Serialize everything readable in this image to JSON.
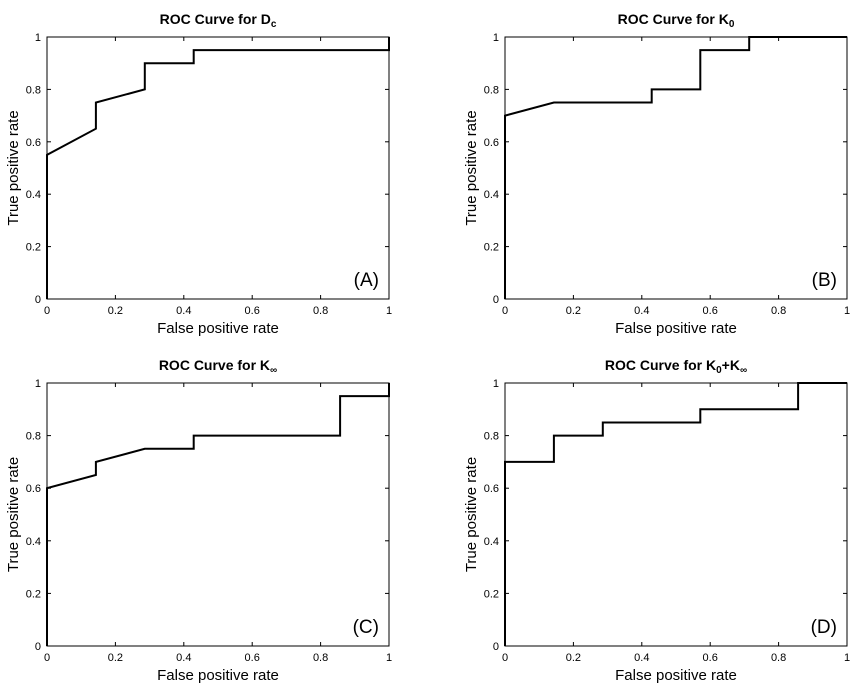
{
  "figure": {
    "background": "#ffffff",
    "line_color": "#000000"
  },
  "chart_data": [
    {
      "type": "line",
      "id": "A",
      "title": {
        "main": "ROC Curve for D",
        "sub": "c",
        "tail": ""
      },
      "panel_label": "(A)",
      "xlabel": "False positive rate",
      "ylabel": "True positive rate",
      "xlim": [
        0,
        1
      ],
      "ylim": [
        0,
        1
      ],
      "xticks": [
        0,
        0.2,
        0.4,
        0.6,
        0.8,
        1
      ],
      "yticks": [
        0,
        0.2,
        0.4,
        0.6,
        0.8,
        1
      ],
      "xtick_labels": [
        "0",
        "0.2",
        "0.4",
        "0.6",
        "0.8",
        "1"
      ],
      "ytick_labels": [
        "0",
        "0.2",
        "0.4",
        "0.6",
        "0.8",
        "1"
      ],
      "series": [
        {
          "name": "ROC",
          "x": [
            0,
            0,
            0.143,
            0.143,
            0.286,
            0.286,
            0.429,
            0.429,
            1,
            1
          ],
          "y": [
            0,
            0.55,
            0.65,
            0.75,
            0.8,
            0.9,
            0.9,
            0.95,
            0.95,
            1
          ]
        }
      ]
    },
    {
      "type": "line",
      "id": "B",
      "title": {
        "main": "ROC Curve for K",
        "sub": "0",
        "tail": ""
      },
      "panel_label": "(B)",
      "xlabel": "False positive rate",
      "ylabel": "True positive rate",
      "xlim": [
        0,
        1
      ],
      "ylim": [
        0,
        1
      ],
      "xticks": [
        0,
        0.2,
        0.4,
        0.6,
        0.8,
        1
      ],
      "yticks": [
        0,
        0.2,
        0.4,
        0.6,
        0.8,
        1
      ],
      "xtick_labels": [
        "0",
        "0.2",
        "0.4",
        "0.6",
        "0.8",
        "1"
      ],
      "ytick_labels": [
        "0",
        "0.2",
        "0.4",
        "0.6",
        "0.8",
        "1"
      ],
      "series": [
        {
          "name": "ROC",
          "x": [
            0,
            0,
            0.143,
            0.429,
            0.429,
            0.571,
            0.571,
            0.714,
            0.714,
            1
          ],
          "y": [
            0,
            0.7,
            0.75,
            0.75,
            0.8,
            0.8,
            0.95,
            0.95,
            1,
            1
          ]
        }
      ]
    },
    {
      "type": "line",
      "id": "C",
      "title": {
        "main": "ROC Curve for K",
        "sub": "∞",
        "tail": ""
      },
      "panel_label": "(C)",
      "xlabel": "False positive rate",
      "ylabel": "True positive rate",
      "xlim": [
        0,
        1
      ],
      "ylim": [
        0,
        1
      ],
      "xticks": [
        0,
        0.2,
        0.4,
        0.6,
        0.8,
        1
      ],
      "yticks": [
        0,
        0.2,
        0.4,
        0.6,
        0.8,
        1
      ],
      "xtick_labels": [
        "0",
        "0.2",
        "0.4",
        "0.6",
        "0.8",
        "1"
      ],
      "ytick_labels": [
        "0",
        "0.2",
        "0.4",
        "0.6",
        "0.8",
        "1"
      ],
      "series": [
        {
          "name": "ROC",
          "x": [
            0,
            0,
            0.143,
            0.143,
            0.286,
            0.429,
            0.429,
            0.857,
            0.857,
            1,
            1
          ],
          "y": [
            0,
            0.6,
            0.65,
            0.7,
            0.75,
            0.75,
            0.8,
            0.8,
            0.95,
            0.95,
            1
          ]
        }
      ]
    },
    {
      "type": "line",
      "id": "D",
      "title": {
        "main": "ROC Curve for K",
        "sub": "0",
        "tail": "+K",
        "sub2": "∞"
      },
      "panel_label": "(D)",
      "xlabel": "False positive rate",
      "ylabel": "True positive rate",
      "xlim": [
        0,
        1
      ],
      "ylim": [
        0,
        1
      ],
      "xticks": [
        0,
        0.2,
        0.4,
        0.6,
        0.8,
        1
      ],
      "yticks": [
        0,
        0.2,
        0.4,
        0.6,
        0.8,
        1
      ],
      "xtick_labels": [
        "0",
        "0.2",
        "0.4",
        "0.6",
        "0.8",
        "1"
      ],
      "ytick_labels": [
        "0",
        "0.2",
        "0.4",
        "0.6",
        "0.8",
        "1"
      ],
      "series": [
        {
          "name": "ROC",
          "x": [
            0,
            0,
            0.143,
            0.143,
            0.286,
            0.286,
            0.571,
            0.571,
            0.857,
            0.857,
            1
          ],
          "y": [
            0,
            0.7,
            0.7,
            0.8,
            0.8,
            0.85,
            0.85,
            0.9,
            0.9,
            1,
            1
          ]
        }
      ]
    }
  ]
}
